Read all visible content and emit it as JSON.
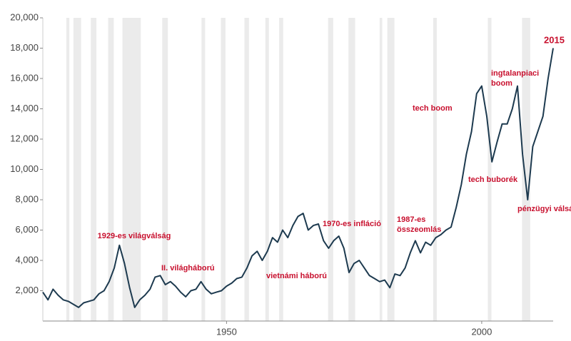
{
  "chart_data": {
    "type": "line",
    "x": [
      1914,
      1915,
      1916,
      1917,
      1918,
      1919,
      1920,
      1921,
      1922,
      1923,
      1924,
      1925,
      1926,
      1927,
      1928,
      1929,
      1930,
      1931,
      1932,
      1933,
      1934,
      1935,
      1936,
      1937,
      1938,
      1939,
      1940,
      1941,
      1942,
      1943,
      1944,
      1945,
      1946,
      1947,
      1948,
      1949,
      1950,
      1951,
      1952,
      1953,
      1954,
      1955,
      1956,
      1957,
      1958,
      1959,
      1960,
      1961,
      1962,
      1963,
      1964,
      1965,
      1966,
      1967,
      1968,
      1969,
      1970,
      1971,
      1972,
      1973,
      1974,
      1975,
      1976,
      1977,
      1978,
      1979,
      1980,
      1981,
      1982,
      1983,
      1984,
      1985,
      1986,
      1987,
      1988,
      1989,
      1990,
      1991,
      1992,
      1993,
      1994,
      1995,
      1996,
      1997,
      1998,
      1999,
      2000,
      2001,
      2002,
      2003,
      2004,
      2005,
      2006,
      2007,
      2008,
      2009,
      2010,
      2011,
      2012,
      2013,
      2014
    ],
    "series": [
      {
        "color": "#1d3a4f",
        "values": [
          1900,
          1400,
          2100,
          1700,
          1400,
          1300,
          1100,
          900,
          1200,
          1300,
          1400,
          1800,
          2000,
          2600,
          3500,
          5000,
          3800,
          2200,
          900,
          1400,
          1700,
          2100,
          2900,
          3000,
          2400,
          2600,
          2300,
          1900,
          1600,
          2000,
          2100,
          2600,
          2100,
          1800,
          1900,
          2000,
          2300,
          2500,
          2800,
          2900,
          3500,
          4300,
          4600,
          4000,
          4600,
          5500,
          5200,
          6000,
          5500,
          6300,
          6900,
          7100,
          6000,
          6300,
          6400,
          5300,
          4800,
          5300,
          5600,
          4800,
          3200,
          3800,
          4000,
          3500,
          3000,
          2800,
          2600,
          2700,
          2200,
          3100,
          3000,
          3500,
          4500,
          5300,
          4500,
          5200,
          5000,
          5500,
          5700,
          6000,
          6200,
          7500,
          9000,
          11000,
          12500,
          15000,
          15500,
          13500,
          10500,
          11800,
          13000,
          13000,
          14000,
          15500,
          11000,
          8000,
          11500,
          12500,
          13500,
          16000,
          18000
        ]
      }
    ],
    "recessions": [
      [
        1918.6,
        1919.2
      ],
      [
        1920,
        1921.5
      ],
      [
        1923.4,
        1924.5
      ],
      [
        1926.8,
        1927.9
      ],
      [
        1929.6,
        1933.2
      ],
      [
        1937.4,
        1938.5
      ],
      [
        1945.1,
        1945.8
      ],
      [
        1948.9,
        1949.8
      ],
      [
        1953.5,
        1954.4
      ],
      [
        1957.6,
        1958.3
      ],
      [
        1960.3,
        1961.1
      ],
      [
        1969.9,
        1970.9
      ],
      [
        1973.9,
        1975.2
      ],
      [
        1980,
        1980.5
      ],
      [
        1981.5,
        1982.9
      ],
      [
        1990.5,
        1991.2
      ],
      [
        2001.2,
        2001.9
      ],
      [
        2007.9,
        2009.5
      ]
    ],
    "xlim": [
      1914,
      2014
    ],
    "xticks": [
      1950,
      2000
    ],
    "ylim": [
      0,
      20000
    ],
    "yticks": [
      {
        "value": 2000,
        "label": "2,000"
      },
      {
        "value": 4000,
        "label": "4,000"
      },
      {
        "value": 6000,
        "label": "6,000"
      },
      {
        "value": 8000,
        "label": "8,000"
      },
      {
        "value": 10000,
        "label": "10,000"
      },
      {
        "value": 12000,
        "label": "12,000"
      },
      {
        "value": 14000,
        "label": "14,000"
      },
      {
        "value": 16000,
        "label": "16,000"
      },
      {
        "value": 18000,
        "label": "18,000"
      },
      {
        "value": 20000,
        "label": "20,000"
      }
    ],
    "annotations": [
      [
        "2015"
      ],
      [
        "1929-es világválság"
      ],
      [
        "II. világháború"
      ],
      [
        "vietnámi háború"
      ],
      [
        "1970-es infláció"
      ],
      [
        "1987-es",
        "összeomlás"
      ],
      [
        "tech boom"
      ],
      [
        "ingtalanpiaci",
        "boom"
      ],
      [
        "tech buborék"
      ],
      [
        "pénzügyi válság"
      ]
    ]
  }
}
